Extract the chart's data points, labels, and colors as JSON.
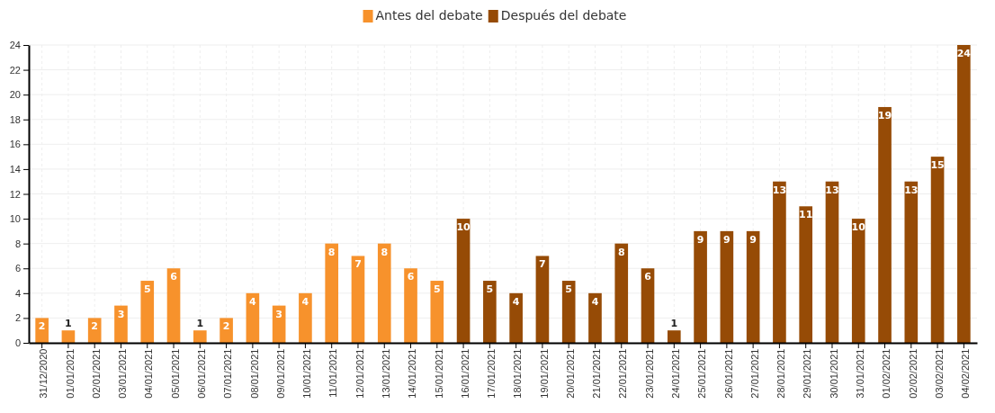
{
  "chart_data": {
    "type": "bar",
    "data_labels": true,
    "grid": true,
    "legend": "top",
    "categories": [
      "31/12/2020",
      "01/01/2021",
      "02/01/2021",
      "03/01/2021",
      "04/01/2021",
      "05/01/2021",
      "06/01/2021",
      "07/01/2021",
      "08/01/2021",
      "09/01/2021",
      "10/01/2021",
      "11/01/2021",
      "12/01/2021",
      "13/01/2021",
      "14/01/2021",
      "15/01/2021",
      "16/01/2021",
      "17/01/2021",
      "18/01/2021",
      "19/01/2021",
      "20/01/2021",
      "21/01/2021",
      "22/01/2021",
      "23/01/2021",
      "24/01/2021",
      "25/01/2021",
      "26/01/2021",
      "27/01/2021",
      "28/01/2021",
      "29/01/2021",
      "30/01/2021",
      "31/01/2021",
      "01/02/2021",
      "02/02/2021",
      "03/02/2021",
      "04/02/2021"
    ],
    "series": [
      {
        "name": "Antes del debate",
        "color": "#f7922c",
        "values": [
          2,
          1,
          2,
          3,
          5,
          6,
          1,
          2,
          4,
          3,
          4,
          8,
          7,
          8,
          6,
          5,
          null,
          null,
          null,
          null,
          null,
          null,
          null,
          null,
          null,
          null,
          null,
          null,
          null,
          null,
          null,
          null,
          null,
          null,
          null,
          null
        ]
      },
      {
        "name": "Después del debate",
        "color": "#964b06",
        "values": [
          null,
          null,
          null,
          null,
          null,
          null,
          null,
          null,
          null,
          null,
          null,
          null,
          null,
          null,
          null,
          null,
          10,
          5,
          4,
          7,
          5,
          4,
          8,
          6,
          1,
          9,
          9,
          9,
          13,
          11,
          13,
          10,
          19,
          13,
          15,
          24
        ]
      }
    ],
    "ylim": [
      0,
      24
    ],
    "yticks": [
      0,
      2,
      4,
      6,
      8,
      10,
      12,
      14,
      16,
      18,
      20,
      22,
      24
    ]
  }
}
